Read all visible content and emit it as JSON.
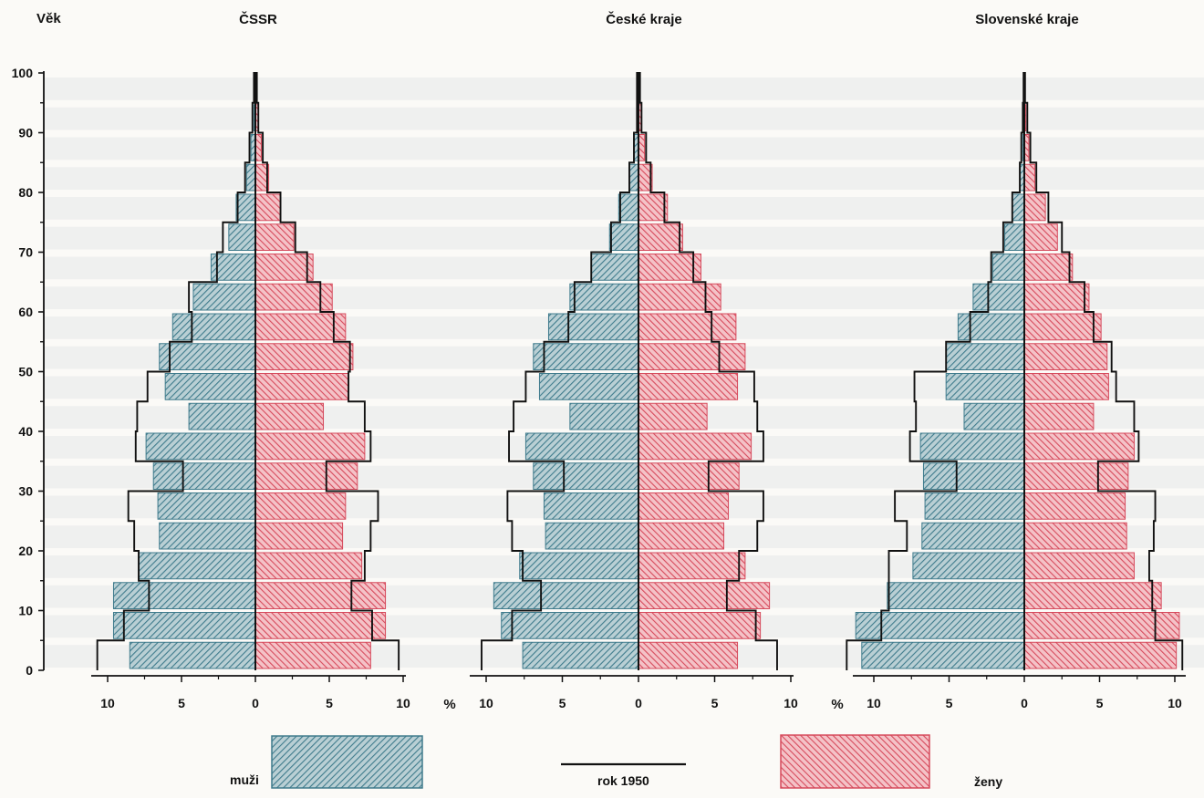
{
  "axis_title": "Věk",
  "percent_sign": "%",
  "x_ticks": [
    "10",
    "5",
    "0",
    "5",
    "10"
  ],
  "y_ticks": [
    "100",
    "90",
    "80",
    "70",
    "60",
    "50",
    "40",
    "30",
    "20",
    "10",
    "0"
  ],
  "legend": {
    "men": "muži",
    "line_1950": "rok 1950",
    "women": "ženy"
  },
  "colors": {
    "men": "#3f7b8c",
    "women": "#d64a5c",
    "outline": "#111111",
    "bands": "#e6e8ea"
  },
  "chart_data": [
    {
      "type": "bar",
      "title": "ČSSR",
      "age_groups": [
        "0-4",
        "5-9",
        "10-14",
        "15-19",
        "20-24",
        "25-29",
        "30-34",
        "35-39",
        "40-44",
        "45-49",
        "50-54",
        "55-59",
        "60-64",
        "65-69",
        "70-74",
        "75-79",
        "80-84",
        "85-89",
        "90-94",
        "95-99"
      ],
      "series": [
        {
          "name": "muži",
          "values": [
            8.5,
            9.6,
            9.6,
            7.9,
            6.5,
            6.6,
            6.9,
            7.4,
            4.5,
            6.1,
            6.5,
            5.6,
            4.2,
            3.0,
            1.8,
            1.3,
            0.6,
            0.3,
            0.1,
            0.05
          ]
        },
        {
          "name": "ženy",
          "values": [
            7.8,
            8.8,
            8.8,
            7.2,
            5.9,
            6.1,
            6.9,
            7.4,
            4.6,
            6.3,
            6.6,
            6.1,
            5.2,
            3.9,
            2.6,
            1.7,
            0.9,
            0.4,
            0.2,
            0.05
          ]
        },
        {
          "name": "rok 1950 muži",
          "values": [
            10.7,
            8.9,
            7.2,
            7.9,
            8.2,
            8.6,
            4.9,
            8.1,
            8.0,
            7.3,
            5.8,
            4.3,
            4.5,
            2.6,
            2.2,
            1.2,
            0.7,
            0.4,
            0.2,
            0.1
          ]
        },
        {
          "name": "rok 1950 ženy",
          "values": [
            9.7,
            7.9,
            6.5,
            7.4,
            7.8,
            8.3,
            4.8,
            7.8,
            7.4,
            6.3,
            6.4,
            5.3,
            4.4,
            3.5,
            2.7,
            1.7,
            0.8,
            0.5,
            0.2,
            0.1
          ]
        }
      ],
      "xlim": [
        -10,
        10
      ],
      "ylim": [
        0,
        100
      ]
    },
    {
      "type": "bar",
      "title": "České kraje",
      "age_groups": [
        "0-4",
        "5-9",
        "10-14",
        "15-19",
        "20-24",
        "25-29",
        "30-34",
        "35-39",
        "40-44",
        "45-49",
        "50-54",
        "55-59",
        "60-64",
        "65-69",
        "70-74",
        "75-79",
        "80-84",
        "85-89",
        "90-94",
        "95-99"
      ],
      "series": [
        {
          "name": "muži",
          "values": [
            7.6,
            9.0,
            9.5,
            7.8,
            6.1,
            6.2,
            6.9,
            7.4,
            4.5,
            6.5,
            6.9,
            5.9,
            4.5,
            3.1,
            1.9,
            1.3,
            0.6,
            0.3,
            0.1,
            0.05
          ]
        },
        {
          "name": "ženy",
          "values": [
            6.5,
            8.0,
            8.6,
            7.0,
            5.6,
            5.9,
            6.6,
            7.4,
            4.5,
            6.5,
            7.0,
            6.4,
            5.4,
            4.1,
            2.9,
            1.9,
            0.9,
            0.4,
            0.2,
            0.05
          ]
        },
        {
          "name": "rok 1950 muži",
          "values": [
            10.3,
            8.3,
            6.4,
            7.6,
            8.3,
            8.6,
            4.9,
            8.5,
            8.2,
            7.4,
            6.2,
            4.6,
            4.2,
            3.1,
            1.8,
            1.2,
            0.6,
            0.3,
            0.1,
            0.1
          ]
        },
        {
          "name": "rok 1950 ženy",
          "values": [
            9.1,
            7.7,
            5.8,
            6.6,
            7.8,
            8.2,
            4.6,
            8.2,
            7.8,
            7.6,
            5.3,
            4.8,
            4.4,
            3.6,
            2.7,
            1.7,
            0.8,
            0.5,
            0.2,
            0.1
          ]
        }
      ],
      "xlim": [
        -10,
        10
      ],
      "ylim": [
        0,
        100
      ]
    },
    {
      "type": "bar",
      "title": "Slovenské kraje",
      "age_groups": [
        "0-4",
        "5-9",
        "10-14",
        "15-19",
        "20-24",
        "25-29",
        "30-34",
        "35-39",
        "40-44",
        "45-49",
        "50-54",
        "55-59",
        "60-64",
        "65-69",
        "70-74",
        "75-79",
        "80-84",
        "85-89",
        "90-94",
        "95-99"
      ],
      "series": [
        {
          "name": "muži",
          "values": [
            10.8,
            11.2,
            9.1,
            7.4,
            6.8,
            6.6,
            6.7,
            6.9,
            4.0,
            5.2,
            5.2,
            4.4,
            3.4,
            2.1,
            1.3,
            0.8,
            0.3,
            0.1,
            0.05,
            0.05
          ]
        },
        {
          "name": "ženy",
          "values": [
            10.1,
            10.3,
            9.1,
            7.3,
            6.8,
            6.7,
            6.9,
            7.3,
            4.6,
            5.6,
            5.5,
            5.1,
            4.3,
            3.2,
            2.2,
            1.4,
            0.7,
            0.3,
            0.1,
            0.05
          ]
        },
        {
          "name": "rok 1950 muži",
          "values": [
            11.8,
            9.5,
            9.0,
            9.0,
            7.8,
            8.6,
            4.5,
            7.6,
            7.2,
            7.3,
            5.2,
            3.6,
            2.4,
            2.2,
            1.4,
            0.8,
            0.3,
            0.2,
            0.1,
            0.05
          ]
        },
        {
          "name": "rok 1950 ženy",
          "values": [
            10.5,
            8.7,
            8.5,
            8.3,
            8.6,
            8.7,
            4.9,
            7.6,
            7.3,
            6.1,
            5.8,
            4.6,
            4.0,
            3.0,
            2.5,
            1.6,
            0.8,
            0.4,
            0.2,
            0.05
          ]
        }
      ],
      "xlim": [
        -10,
        10
      ],
      "ylim": [
        0,
        100
      ]
    }
  ]
}
